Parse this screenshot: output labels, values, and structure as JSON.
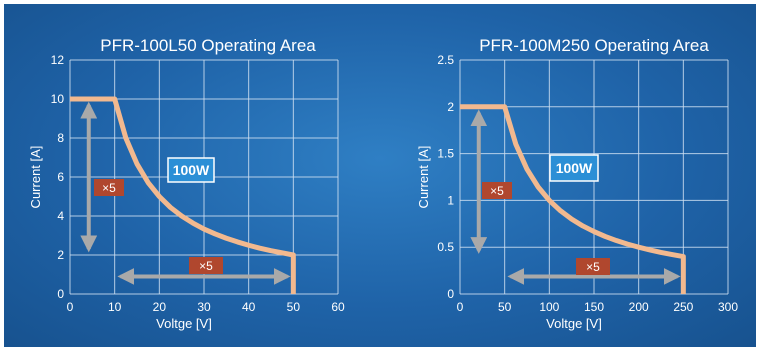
{
  "colors": {
    "background": "#1f63a8",
    "grid": "#cfe0f2",
    "curve": "#f2b98f",
    "arrow": "#a9a9a9",
    "power_box": "#2b8fd6",
    "factor_box": "#b0472e"
  },
  "chart_data": [
    {
      "type": "line",
      "title": "PFR-100L50 Operating Area",
      "xlabel": "Voltge [V]",
      "ylabel": "Current [A]",
      "xlim": [
        0,
        60
      ],
      "ylim": [
        0,
        12
      ],
      "xticks": [
        "0",
        "10",
        "20",
        "30",
        "40",
        "50",
        "60"
      ],
      "yticks": [
        "0",
        "2",
        "4",
        "6",
        "8",
        "10",
        "12"
      ],
      "grid": true,
      "series": [
        {
          "x": [
            0,
            10,
            12.5,
            15,
            17.5,
            20,
            22.5,
            25,
            27.5,
            30,
            32.5,
            35,
            37.5,
            40,
            42.5,
            45,
            47.5,
            50,
            50
          ],
          "y": [
            10,
            10,
            8,
            6.67,
            5.71,
            5,
            4.44,
            4,
            3.64,
            3.33,
            3.08,
            2.86,
            2.67,
            2.5,
            2.35,
            2.22,
            2.11,
            2,
            0
          ]
        }
      ],
      "annotations": {
        "power": "100W",
        "current_factor": "×5",
        "voltage_factor": "×5",
        "current_arrow": [
          10,
          2
        ],
        "voltage_arrow": [
          10,
          50
        ]
      }
    },
    {
      "type": "line",
      "title": "PFR-100M250 Operating Area",
      "xlabel": "Voltge [V]",
      "ylabel": "Current [A]",
      "xlim": [
        0,
        300
      ],
      "ylim": [
        0,
        2.5
      ],
      "xticks": [
        "0",
        "50",
        "100",
        "150",
        "200",
        "250",
        "300"
      ],
      "yticks": [
        "0",
        "0.5",
        "1",
        "1.5",
        "2",
        "2.5"
      ],
      "grid": true,
      "series": [
        {
          "x": [
            0,
            50,
            62.5,
            75,
            87.5,
            100,
            112.5,
            125,
            137.5,
            150,
            162.5,
            175,
            187.5,
            200,
            212.5,
            225,
            237.5,
            250,
            250
          ],
          "y": [
            2,
            2,
            1.6,
            1.333,
            1.143,
            1,
            0.889,
            0.8,
            0.727,
            0.667,
            0.615,
            0.571,
            0.533,
            0.5,
            0.471,
            0.444,
            0.421,
            0.4,
            0
          ]
        }
      ],
      "annotations": {
        "power": "100W",
        "current_factor": "×5",
        "voltage_factor": "×5",
        "current_arrow": [
          2,
          0.4
        ],
        "voltage_arrow": [
          50,
          250
        ]
      }
    }
  ]
}
